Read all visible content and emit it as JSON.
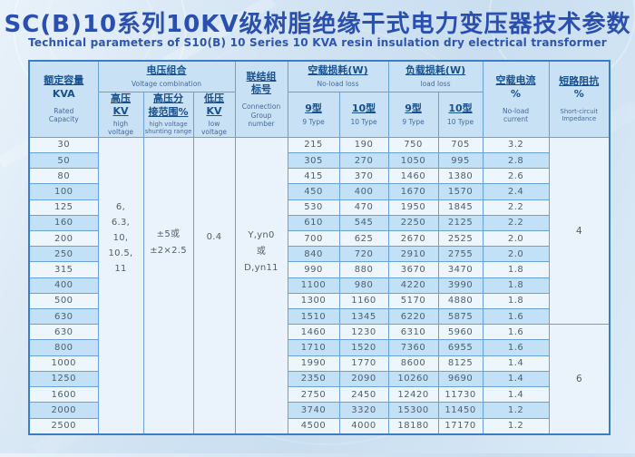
{
  "title": "SC(B)10系列10KV级树脂绝缘干式电力变压器技术参数",
  "subtitle": "Technical parameters of S10(B) 10 Series 10 KVA resin insulation dry electrical transformer",
  "colors": {
    "title_text": "#2a4fae",
    "table_border": "#3e7dc2",
    "grid_line": "#69a1d7",
    "header_bg": "#c9e1f4",
    "stripe_blue": "#c3e1f6",
    "stripe_white": "#eef6fd",
    "merged_cell_bg": "#eaf3fb",
    "data_text": "#4e5f6e",
    "page_bg": "#d3e4f3"
  },
  "table": {
    "headers": {
      "capacity_cn": "额定容量",
      "capacity_unit": "KVA",
      "capacity_en": "Rated\nCapacity",
      "voltage_group_cn": "电压组合",
      "voltage_group_en": "Voltage combination",
      "hv_cn": "高压\nKV",
      "hv_en": "high\nvoltage",
      "tap_cn": "高压分\n接范围%",
      "tap_en": "high voltage\nshunting range",
      "lv_cn": "低压\nKV",
      "lv_en": "low\nvoltage",
      "connection_cn": "联结组\n标号",
      "connection_en": "Connection\nGroup\nnumber",
      "noload_loss_cn": "空载损耗(W)",
      "noload_loss_en": "No-load loss",
      "load_loss_cn": "负载损耗(W)",
      "load_loss_en": "load loss",
      "type9_cn": "9型",
      "type9_en": "9 Type",
      "type10_cn": "10型",
      "type10_en": "10 Type",
      "noload_current_cn": "空载电流",
      "noload_current_unit": "%",
      "noload_current_en": "No-load\ncurrent",
      "impedance_cn": "短路阻抗",
      "impedance_unit": "%",
      "impedance_en": "Short-circuit\nImpedance"
    },
    "merged": {
      "high_voltage_lines": [
        "6,",
        "6.3,",
        "10,",
        "10.5,",
        "11"
      ],
      "tap_range_lines": [
        "±5或",
        "±2×2.5"
      ],
      "low_voltage_lines": [
        "0.4"
      ],
      "connection_lines": [
        "Y,yn0",
        "或",
        "D,yn11"
      ],
      "impedance_groups": [
        {
          "value": "4",
          "row_span": 12
        },
        {
          "value": "6",
          "row_span": 7
        }
      ]
    },
    "rows": [
      {
        "kva": "30",
        "nl9": "215",
        "nl10": "190",
        "ll9": "750",
        "ll10": "705",
        "current": "3.2"
      },
      {
        "kva": "50",
        "nl9": "305",
        "nl10": "270",
        "ll9": "1050",
        "ll10": "995",
        "current": "2.8"
      },
      {
        "kva": "80",
        "nl9": "415",
        "nl10": "370",
        "ll9": "1460",
        "ll10": "1380",
        "current": "2.6"
      },
      {
        "kva": "100",
        "nl9": "450",
        "nl10": "400",
        "ll9": "1670",
        "ll10": "1570",
        "current": "2.4"
      },
      {
        "kva": "125",
        "nl9": "530",
        "nl10": "470",
        "ll9": "1950",
        "ll10": "1845",
        "current": "2.2"
      },
      {
        "kva": "160",
        "nl9": "610",
        "nl10": "545",
        "ll9": "2250",
        "ll10": "2125",
        "current": "2.2"
      },
      {
        "kva": "200",
        "nl9": "700",
        "nl10": "625",
        "ll9": "2670",
        "ll10": "2525",
        "current": "2.0"
      },
      {
        "kva": "250",
        "nl9": "840",
        "nl10": "720",
        "ll9": "2910",
        "ll10": "2755",
        "current": "2.0"
      },
      {
        "kva": "315",
        "nl9": "990",
        "nl10": "880",
        "ll9": "3670",
        "ll10": "3470",
        "current": "1.8"
      },
      {
        "kva": "400",
        "nl9": "1100",
        "nl10": "980",
        "ll9": "4220",
        "ll10": "3990",
        "current": "1.8"
      },
      {
        "kva": "500",
        "nl9": "1300",
        "nl10": "1160",
        "ll9": "5170",
        "ll10": "4880",
        "current": "1.8"
      },
      {
        "kva": "630",
        "nl9": "1510",
        "nl10": "1345",
        "ll9": "6220",
        "ll10": "5875",
        "current": "1.6"
      },
      {
        "kva": "630",
        "nl9": "1460",
        "nl10": "1230",
        "ll9": "6310",
        "ll10": "5960",
        "current": "1.6"
      },
      {
        "kva": "800",
        "nl9": "1710",
        "nl10": "1520",
        "ll9": "7360",
        "ll10": "6955",
        "current": "1.6"
      },
      {
        "kva": "1000",
        "nl9": "1990",
        "nl10": "1770",
        "ll9": "8600",
        "ll10": "8125",
        "current": "1.4"
      },
      {
        "kva": "1250",
        "nl9": "2350",
        "nl10": "2090",
        "ll9": "10260",
        "ll10": "9690",
        "current": "1.4"
      },
      {
        "kva": "1600",
        "nl9": "2750",
        "nl10": "2450",
        "ll9": "12420",
        "ll10": "11730",
        "current": "1.4"
      },
      {
        "kva": "2000",
        "nl9": "3740",
        "nl10": "3320",
        "ll9": "15300",
        "ll10": "11450",
        "current": "1.2"
      },
      {
        "kva": "2500",
        "nl9": "4500",
        "nl10": "4000",
        "ll9": "18180",
        "ll10": "17170",
        "current": "1.2"
      }
    ]
  }
}
